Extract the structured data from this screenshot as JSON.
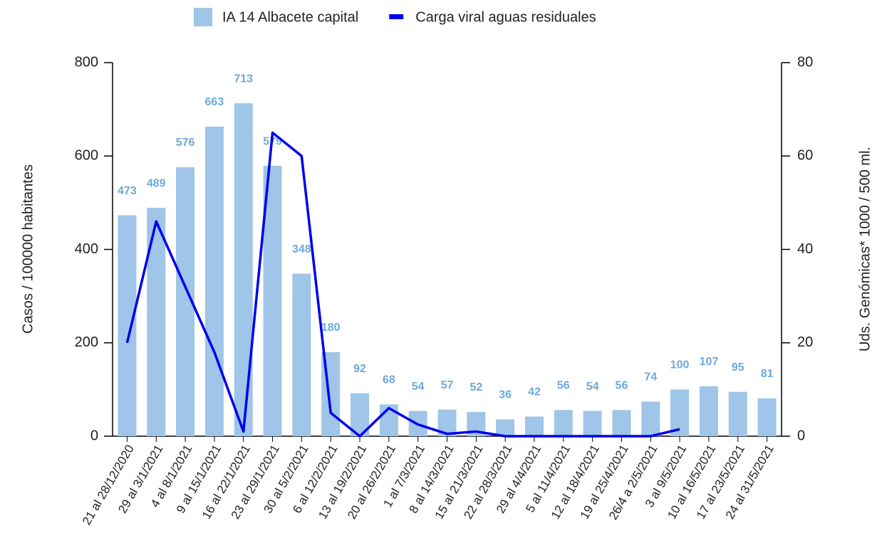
{
  "chart_data": {
    "type": "bar",
    "categories": [
      "21 al 28/12/2020",
      "29 al 3/1/2021",
      "4 al 8/1/2021",
      "9 al 15/1/2021",
      "16 al 22/1/2021",
      "23 al 29/1/2021",
      "30 al 5/2/2021",
      "6 al 12/2/2021",
      "13 al 19/2/2021",
      "20 al 26/2/2021",
      "1 al 7/3/2021",
      "8 al 14/3/2021",
      "15 al 21/3/2021",
      "22 al 28/3/2021",
      "29 al 4/4/2021",
      "5 al 11/4/2021",
      "12 al 18/4/2021",
      "19 al 25/4/2021",
      "26/4 a 2/5/2021",
      "3 al 9/5/2021",
      "10 al 16/5/2021",
      "17 al 23/5/2021",
      "24 al 31/5/2021"
    ],
    "series": [
      {
        "name": "IA 14 Albacete capital",
        "type": "bar",
        "color": "#9fc5e8",
        "label_color": "#6fa8dc",
        "values": [
          473,
          489,
          576,
          663,
          713,
          579,
          348,
          180,
          92,
          68,
          54,
          57,
          52,
          36,
          42,
          56,
          54,
          56,
          74,
          100,
          107,
          95,
          81
        ]
      },
      {
        "name": "Carga viral aguas residuales",
        "type": "line",
        "axis": "y2",
        "color": "#0000ee",
        "values": [
          20,
          46,
          32,
          18,
          1,
          65,
          60,
          5,
          0,
          6,
          2.5,
          0.5,
          1,
          0,
          0,
          0,
          0,
          0,
          0,
          1.5,
          null,
          null,
          null
        ]
      }
    ],
    "ylabel": "Casos / 100000 habitantes",
    "y2label": "Uds. Genómicas* 1000 / 500 ml.",
    "ylim": [
      0,
      800
    ],
    "yticks": [
      0,
      200,
      400,
      600,
      800
    ],
    "y2lim": [
      0,
      80
    ],
    "y2ticks": [
      0,
      20,
      40,
      60,
      80
    ],
    "legend": "top"
  }
}
